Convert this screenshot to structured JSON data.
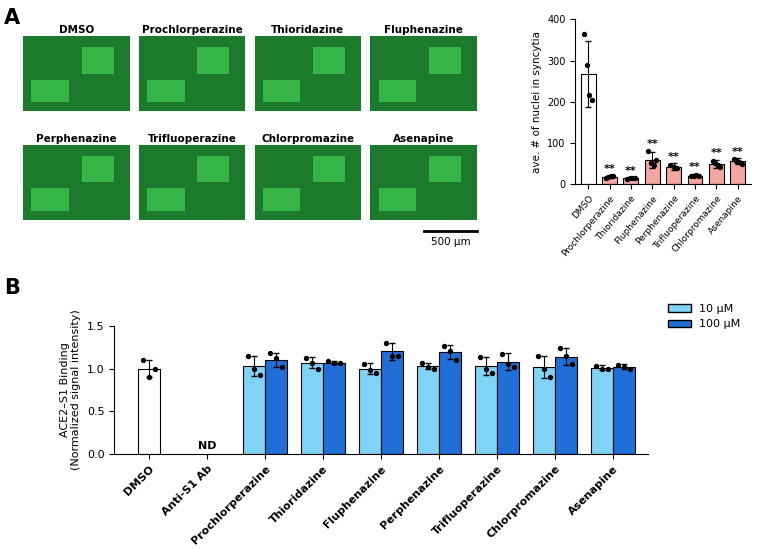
{
  "panel_labels": [
    "A",
    "B"
  ],
  "micrographs": {
    "labels": [
      "DMSO",
      "Prochlorperazine",
      "Thioridazine",
      "Fluphenazine",
      "Perphenazine",
      "Trifluoperazine",
      "Chlorpromazine",
      "Asenapine"
    ],
    "scale_bar": "500 µm"
  },
  "chart_data": [
    {
      "type": "bar",
      "categories": [
        "DMSO",
        "Prochlorperazine",
        "Thioridazine",
        "Fluphenazine",
        "Perphenazine",
        "Trifluoperazine",
        "Chlorpromazine",
        "Asenapine"
      ],
      "values": [
        268,
        17,
        13,
        58,
        42,
        20,
        48,
        55
      ],
      "errors": [
        80,
        3,
        2,
        20,
        8,
        4,
        10,
        7
      ],
      "points": [
        [
          365,
          290,
          215,
          205
        ],
        [
          15,
          17,
          18,
          19
        ],
        [
          12,
          13,
          14,
          13
        ],
        [
          80,
          50,
          45,
          58
        ],
        [
          45,
          42,
          38
        ],
        [
          18,
          20,
          22,
          20
        ],
        [
          55,
          50,
          45,
          40
        ],
        [
          60,
          55,
          52,
          48
        ]
      ],
      "colors": [
        "#ffffff",
        "#f4a6a0",
        "#f4a6a0",
        "#f4a6a0",
        "#f4a6a0",
        "#f4a6a0",
        "#f4a6a0",
        "#f4a6a0"
      ],
      "significance": [
        null,
        "**",
        "**",
        "**",
        "**",
        "**",
        "**",
        "**"
      ],
      "ylabel": "ave. # of nuclei in syncytia",
      "ylim": [
        0,
        400
      ],
      "yticks": [
        0,
        100,
        200,
        300,
        400
      ]
    },
    {
      "type": "bar",
      "categories": [
        "DMSO",
        "Anti-S1 Ab",
        "Prochlorperazine",
        "Thioridazine",
        "Fluphenazine",
        "Perphenazine",
        "Trifluoperazine",
        "Chlorpromazine",
        "Asenapine"
      ],
      "series": [
        {
          "color": "#ffffff",
          "values": [
            1.0,
            null,
            null,
            null,
            null,
            null,
            null,
            null,
            null
          ],
          "errors": [
            0.1,
            null,
            null,
            null,
            null,
            null,
            null,
            null,
            null
          ],
          "points": [
            [
              1.1,
              0.9,
              1.0
            ],
            null,
            null,
            null,
            null,
            null,
            null,
            null,
            null
          ]
        },
        {
          "name": "10 µM",
          "color": "#7fd3f5",
          "values": [
            null,
            null,
            1.03,
            1.07,
            1.0,
            1.03,
            1.03,
            1.02,
            1.01
          ],
          "errors": [
            null,
            null,
            0.12,
            0.06,
            0.06,
            0.04,
            0.1,
            0.13,
            0.03
          ],
          "points": [
            null,
            null,
            [
              1.15,
              1.0,
              0.92
            ],
            [
              1.12,
              1.07,
              1.0
            ],
            [
              1.05,
              0.98,
              0.95
            ],
            [
              1.06,
              1.02,
              1.0
            ],
            [
              1.13,
              1.0,
              0.95
            ],
            [
              1.15,
              1.0,
              0.9
            ],
            [
              1.03,
              1.0,
              0.99
            ]
          ]
        },
        {
          "name": "100 µM",
          "color": "#1f6fd6",
          "values": [
            null,
            null,
            1.1,
            1.07,
            1.2,
            1.19,
            1.08,
            1.14,
            1.02
          ],
          "errors": [
            null,
            null,
            0.08,
            0.02,
            0.1,
            0.08,
            0.1,
            0.1,
            0.03
          ],
          "points": [
            null,
            null,
            [
              1.18,
              1.12,
              1.02
            ],
            [
              1.09,
              1.06,
              1.06
            ],
            [
              1.3,
              1.15,
              1.15
            ],
            [
              1.26,
              1.2,
              1.1
            ],
            [
              1.17,
              1.05,
              1.02
            ],
            [
              1.24,
              1.15,
              1.05
            ],
            [
              1.04,
              1.02,
              1.0
            ]
          ]
        }
      ],
      "annotations": [
        {
          "text": "ND",
          "category": "Anti-S1 Ab"
        }
      ],
      "ylabel": "ACE2–S1 Binding\n(Normalized signal intensity)",
      "ylim": [
        0.0,
        1.5
      ],
      "yticks": [
        0.0,
        0.5,
        1.0,
        1.5
      ],
      "legend": "upper left"
    }
  ]
}
